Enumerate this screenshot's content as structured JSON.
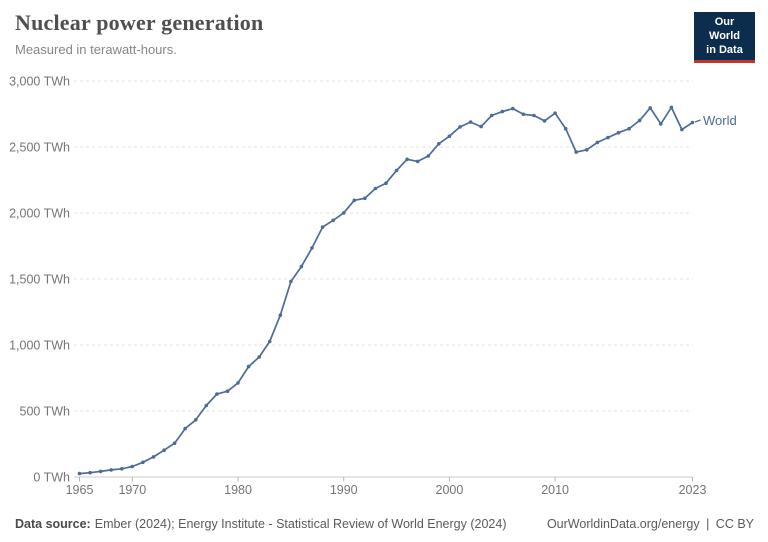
{
  "header": {
    "title": "Nuclear power generation",
    "subtitle": "Measured in terawatt-hours."
  },
  "logo": {
    "line1": "Our World",
    "line2": "in Data"
  },
  "footer": {
    "source_label": "Data source:",
    "source_value": "Ember (2024); Energy Institute - Statistical Review of World Energy (2024)",
    "url": "OurWorldinData.org/energy",
    "separator": "|",
    "license": "CC BY"
  },
  "colors": {
    "line": "#4c6a9c",
    "axis_text": "#757575",
    "gridline": "#e2e2e2",
    "axis_line": "#cccccc",
    "tick_mark": "#b5b5b5",
    "logo_bg": "#0d2d4e",
    "logo_accent": "#c0362c"
  },
  "chart_data": {
    "type": "line",
    "title": "Nuclear power generation",
    "subtitle": "Measured in terawatt-hours.",
    "unit": "TWh",
    "xlabel": "",
    "ylabel": "",
    "xlim": [
      1965,
      2023
    ],
    "ylim": [
      0,
      3000
    ],
    "grid": "horizontal-dashed",
    "legend_position": "end-of-line",
    "xticks": [
      {
        "value": 1965,
        "label": "1965"
      },
      {
        "value": 1970,
        "label": "1970"
      },
      {
        "value": 1980,
        "label": "1980"
      },
      {
        "value": 1990,
        "label": "1990"
      },
      {
        "value": 2000,
        "label": "2000"
      },
      {
        "value": 2010,
        "label": "2010"
      },
      {
        "value": 2023,
        "label": "2023"
      }
    ],
    "yticks": [
      {
        "value": 0,
        "label": "0 TWh"
      },
      {
        "value": 500,
        "label": "500 TWh"
      },
      {
        "value": 1000,
        "label": "1,000 TWh"
      },
      {
        "value": 1500,
        "label": "1,500 TWh"
      },
      {
        "value": 2000,
        "label": "2,000 TWh"
      },
      {
        "value": 2500,
        "label": "2,500 TWh"
      },
      {
        "value": 3000,
        "label": "3,000 TWh"
      }
    ],
    "series": [
      {
        "name": "World",
        "color": "#4c6a9c",
        "x": [
          1965,
          1966,
          1967,
          1968,
          1969,
          1970,
          1971,
          1972,
          1973,
          1974,
          1975,
          1976,
          1977,
          1978,
          1979,
          1980,
          1981,
          1982,
          1983,
          1984,
          1985,
          1986,
          1987,
          1988,
          1989,
          1990,
          1991,
          1992,
          1993,
          1994,
          1995,
          1996,
          1997,
          1998,
          1999,
          2000,
          2001,
          2002,
          2003,
          2004,
          2005,
          2006,
          2007,
          2008,
          2009,
          2010,
          2011,
          2012,
          2013,
          2014,
          2015,
          2016,
          2017,
          2018,
          2019,
          2020,
          2021,
          2022,
          2023
        ],
        "values": [
          25.7,
          32.7,
          42.1,
          53.6,
          62.0,
          79.3,
          111.1,
          152.1,
          203.0,
          255.7,
          366.6,
          433.4,
          541.9,
          627.8,
          650.3,
          712.9,
          836.5,
          909.0,
          1026.8,
          1225.5,
          1480.7,
          1594.3,
          1735.8,
          1893.0,
          1944.9,
          2000.7,
          2096.5,
          2111.6,
          2185.7,
          2225.8,
          2322.5,
          2406.6,
          2390.7,
          2431.8,
          2524.4,
          2581.6,
          2652.5,
          2688.7,
          2654.8,
          2738.6,
          2767.9,
          2790.8,
          2748.0,
          2739.0,
          2697.8,
          2756.3,
          2638.6,
          2461.0,
          2478.8,
          2535.1,
          2571.4,
          2608.0,
          2638.9,
          2701.4,
          2796.1,
          2674.8,
          2800.3,
          2632.1,
          2685.7
        ]
      }
    ]
  }
}
